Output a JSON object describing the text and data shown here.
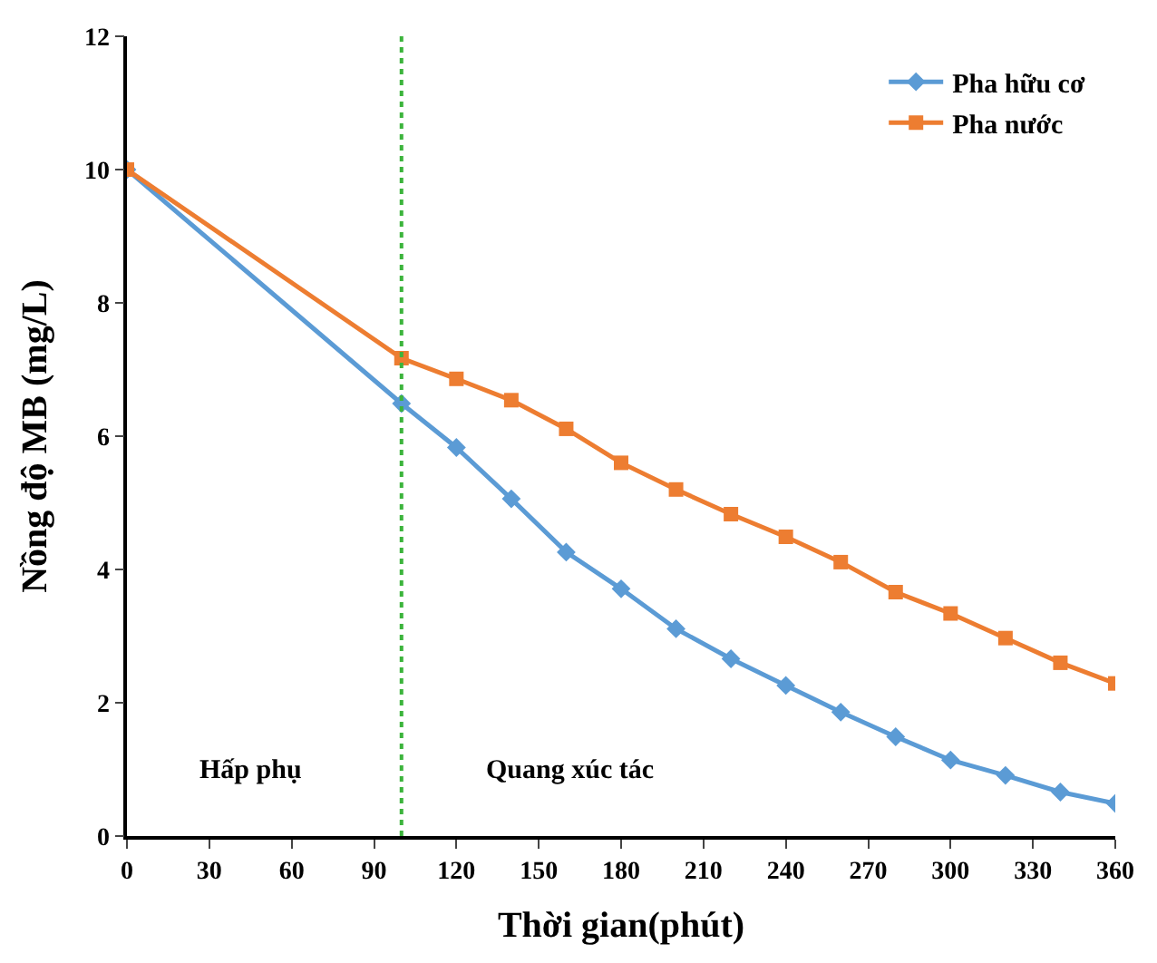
{
  "chart_data": {
    "type": "line",
    "xlabel": "Thời gian(phút)",
    "ylabel": "Nồng độ MB (mg/L)",
    "x": [
      0,
      100,
      120,
      140,
      160,
      180,
      200,
      220,
      240,
      260,
      280,
      300,
      320,
      340,
      360
    ],
    "series": [
      {
        "name": "Pha hữu cơ",
        "color": "#5b9bd5",
        "marker": "diamond",
        "values": [
          10,
          6.49,
          5.83,
          5.06,
          4.26,
          3.71,
          3.11,
          2.66,
          2.26,
          1.86,
          1.49,
          1.14,
          0.91,
          0.66,
          0.49
        ]
      },
      {
        "name": "Pha nước",
        "color": "#ed7d31",
        "marker": "square",
        "values": [
          10,
          7.17,
          6.86,
          6.54,
          6.11,
          5.6,
          5.2,
          4.83,
          4.49,
          4.11,
          3.66,
          3.34,
          2.97,
          2.6,
          2.29
        ]
      }
    ],
    "xlim": [
      0,
      360
    ],
    "xticks": [
      0,
      30,
      60,
      90,
      120,
      150,
      180,
      210,
      240,
      270,
      300,
      330,
      360
    ],
    "ylim": [
      0,
      12
    ],
    "yticks": [
      0,
      2,
      4,
      6,
      8,
      10,
      12
    ],
    "ref_lines": [
      {
        "axis": "x",
        "value": 100,
        "color": "#3cb43c",
        "line_style": "dotted"
      }
    ],
    "annotations": [
      "Hấp phụ",
      "Quang xúc tác"
    ],
    "legend": "top right",
    "line_style": "solid"
  }
}
